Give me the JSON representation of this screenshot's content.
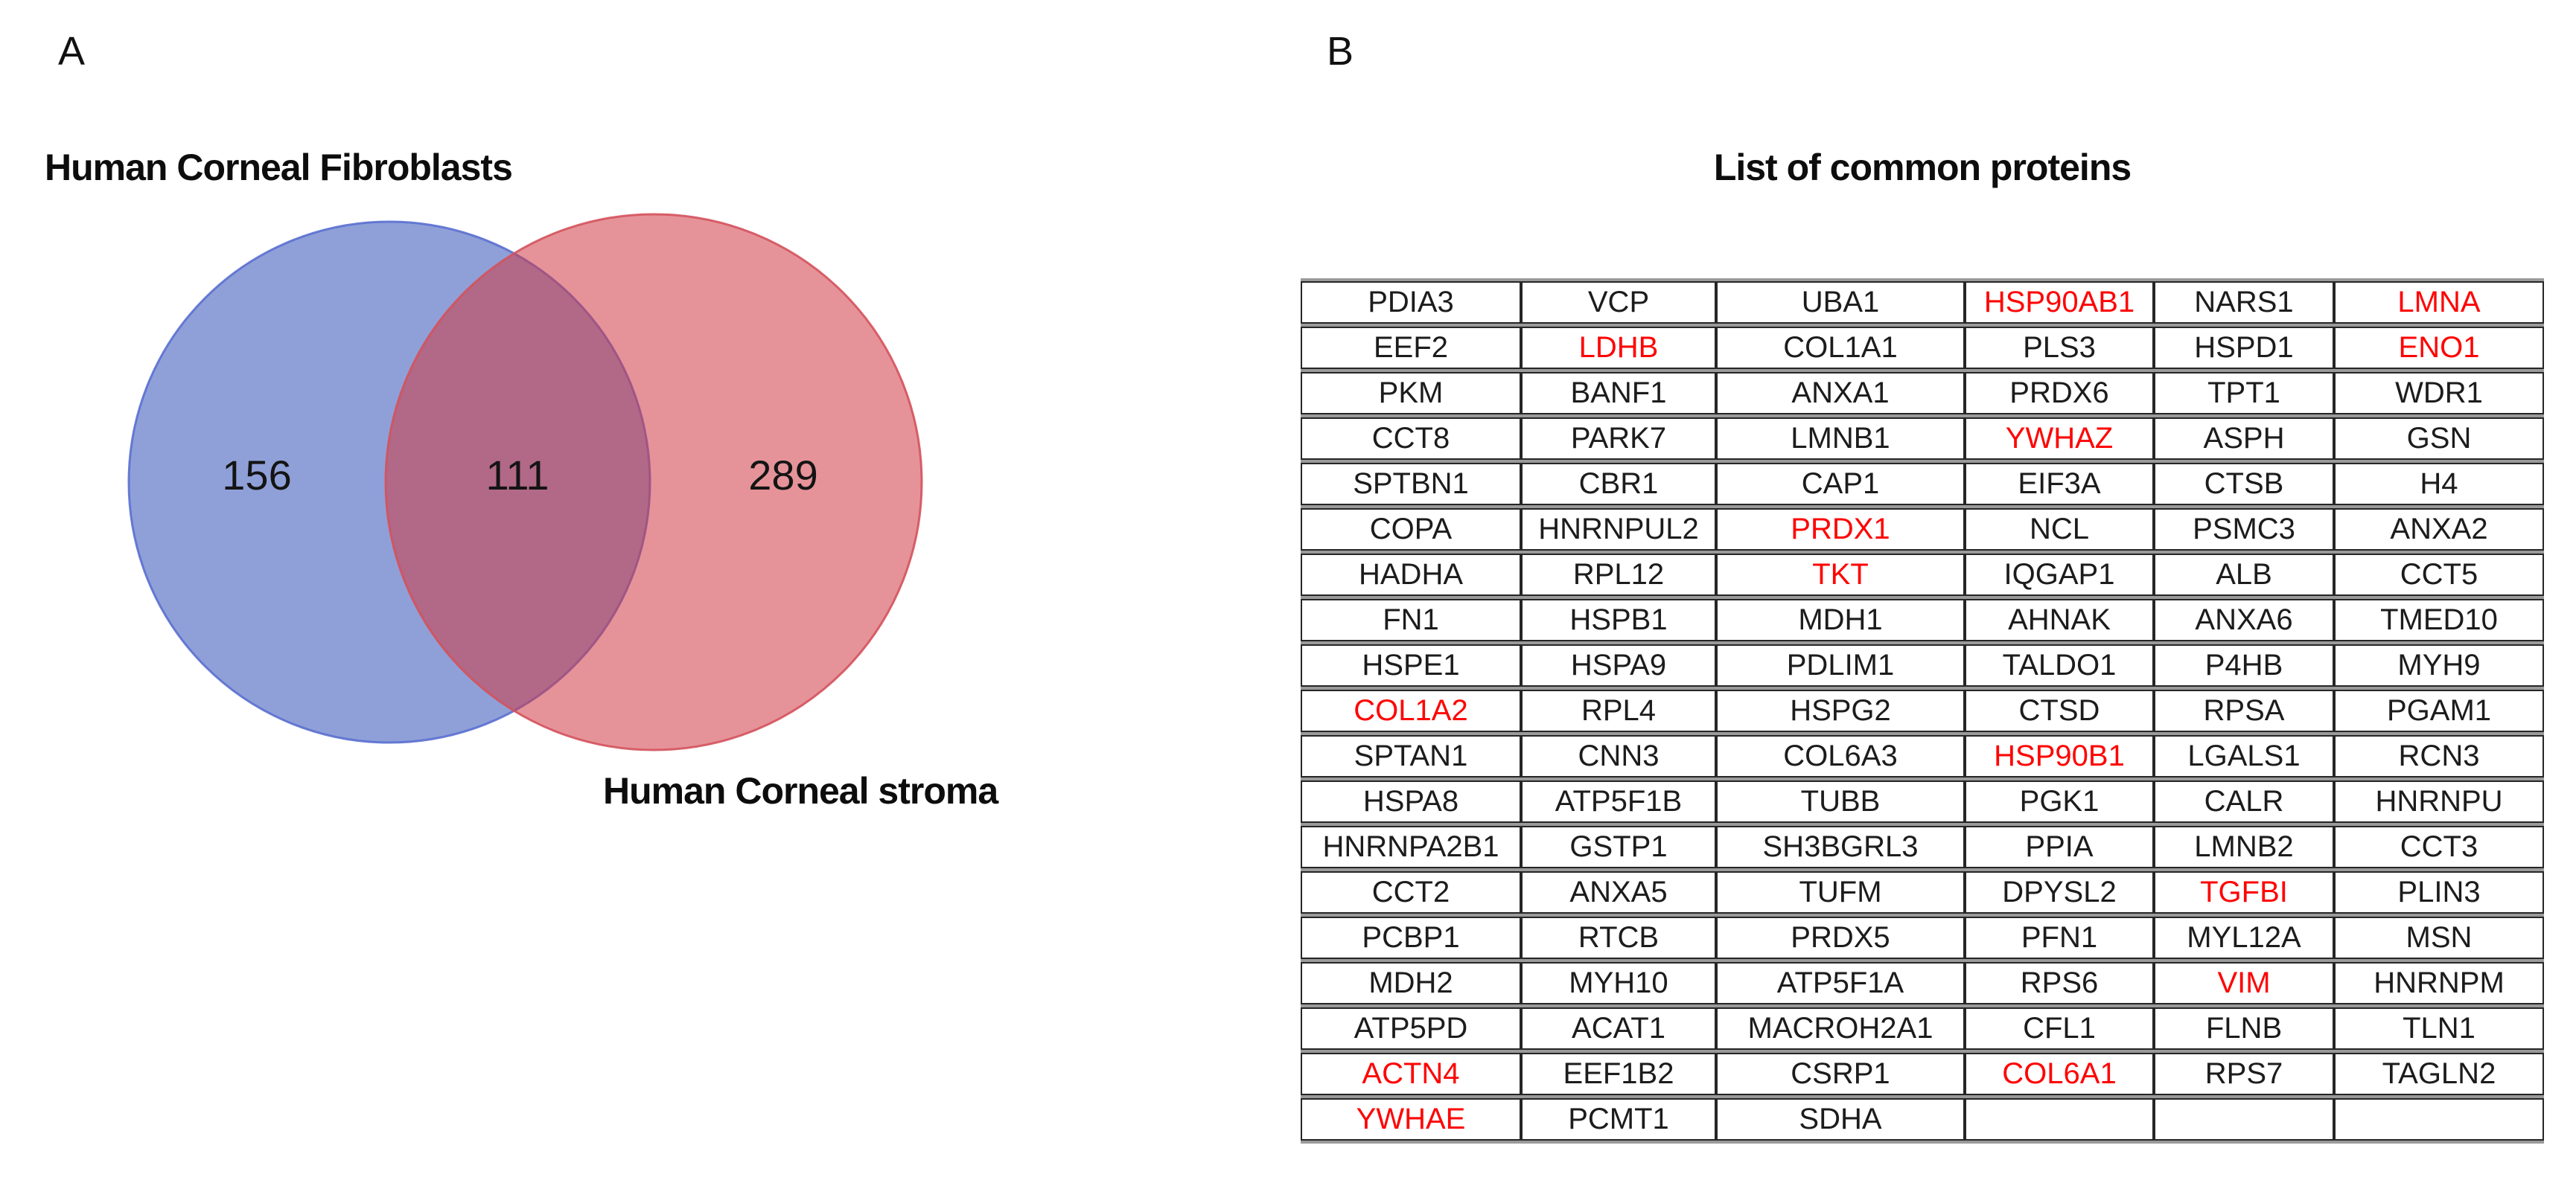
{
  "figure": {
    "panel_a": {
      "label": "A",
      "venn": {
        "set1_label": "Human Corneal Fibroblasts",
        "set2_label": "Human Corneal stroma",
        "set1_only_count": "156",
        "intersection_count": "111",
        "set2_only_count": "289",
        "set1_fill": "#3352b8",
        "set2_fill": "#cf3a45",
        "fill_opacity": "0.55",
        "set1_stroke": "#5a6fd0",
        "set2_stroke": "#d4525c"
      }
    },
    "panel_b": {
      "label": "B",
      "title": "List of common proteins",
      "table": {
        "text_color": "#1c1c1c",
        "highlight_color": "#fe0404",
        "rows": [
          [
            {
              "t": "PDIA3",
              "red": false
            },
            {
              "t": "VCP",
              "red": false
            },
            {
              "t": "UBA1",
              "red": false
            },
            {
              "t": "HSP90AB1",
              "red": true
            },
            {
              "t": "NARS1",
              "red": false
            },
            {
              "t": "LMNA",
              "red": true
            }
          ],
          [
            {
              "t": "EEF2",
              "red": false
            },
            {
              "t": "LDHB",
              "red": true
            },
            {
              "t": "COL1A1",
              "red": false
            },
            {
              "t": "PLS3",
              "red": false
            },
            {
              "t": "HSPD1",
              "red": false
            },
            {
              "t": "ENO1",
              "red": true
            }
          ],
          [
            {
              "t": "PKM",
              "red": false
            },
            {
              "t": "BANF1",
              "red": false
            },
            {
              "t": "ANXA1",
              "red": false
            },
            {
              "t": "PRDX6",
              "red": false
            },
            {
              "t": "TPT1",
              "red": false
            },
            {
              "t": "WDR1",
              "red": false
            }
          ],
          [
            {
              "t": "CCT8",
              "red": false
            },
            {
              "t": "PARK7",
              "red": false
            },
            {
              "t": "LMNB1",
              "red": false
            },
            {
              "t": "YWHAZ",
              "red": true
            },
            {
              "t": "ASPH",
              "red": false
            },
            {
              "t": "GSN",
              "red": false
            }
          ],
          [
            {
              "t": "SPTBN1",
              "red": false
            },
            {
              "t": "CBR1",
              "red": false
            },
            {
              "t": "CAP1",
              "red": false
            },
            {
              "t": "EIF3A",
              "red": false
            },
            {
              "t": "CTSB",
              "red": false
            },
            {
              "t": "H4",
              "red": false
            }
          ],
          [
            {
              "t": "COPA",
              "red": false
            },
            {
              "t": "HNRNPUL2",
              "red": false
            },
            {
              "t": "PRDX1",
              "red": true
            },
            {
              "t": "NCL",
              "red": false
            },
            {
              "t": "PSMC3",
              "red": false
            },
            {
              "t": "ANXA2",
              "red": false
            }
          ],
          [
            {
              "t": "HADHA",
              "red": false
            },
            {
              "t": "RPL12",
              "red": false
            },
            {
              "t": "TKT",
              "red": true
            },
            {
              "t": "IQGAP1",
              "red": false
            },
            {
              "t": "ALB",
              "red": false
            },
            {
              "t": "CCT5",
              "red": false
            }
          ],
          [
            {
              "t": "FN1",
              "red": false
            },
            {
              "t": "HSPB1",
              "red": false
            },
            {
              "t": "MDH1",
              "red": false
            },
            {
              "t": "AHNAK",
              "red": false
            },
            {
              "t": "ANXA6",
              "red": false
            },
            {
              "t": "TMED10",
              "red": false
            }
          ],
          [
            {
              "t": "HSPE1",
              "red": false
            },
            {
              "t": "HSPA9",
              "red": false
            },
            {
              "t": "PDLIM1",
              "red": false
            },
            {
              "t": "TALDO1",
              "red": false
            },
            {
              "t": "P4HB",
              "red": false
            },
            {
              "t": "MYH9",
              "red": false
            }
          ],
          [
            {
              "t": "COL1A2",
              "red": true
            },
            {
              "t": "RPL4",
              "red": false
            },
            {
              "t": "HSPG2",
              "red": false
            },
            {
              "t": "CTSD",
              "red": false
            },
            {
              "t": "RPSA",
              "red": false
            },
            {
              "t": "PGAM1",
              "red": false
            }
          ],
          [
            {
              "t": "SPTAN1",
              "red": false
            },
            {
              "t": "CNN3",
              "red": false
            },
            {
              "t": "COL6A3",
              "red": false
            },
            {
              "t": "HSP90B1",
              "red": true
            },
            {
              "t": "LGALS1",
              "red": false
            },
            {
              "t": "RCN3",
              "red": false
            }
          ],
          [
            {
              "t": "HSPA8",
              "red": false
            },
            {
              "t": "ATP5F1B",
              "red": false
            },
            {
              "t": "TUBB",
              "red": false
            },
            {
              "t": "PGK1",
              "red": false
            },
            {
              "t": "CALR",
              "red": false
            },
            {
              "t": "HNRNPU",
              "red": false
            }
          ],
          [
            {
              "t": "HNRNPA2B1",
              "red": false
            },
            {
              "t": "GSTP1",
              "red": false
            },
            {
              "t": "SH3BGRL3",
              "red": false
            },
            {
              "t": "PPIA",
              "red": false
            },
            {
              "t": "LMNB2",
              "red": false
            },
            {
              "t": "CCT3",
              "red": false
            }
          ],
          [
            {
              "t": "CCT2",
              "red": false
            },
            {
              "t": "ANXA5",
              "red": false
            },
            {
              "t": "TUFM",
              "red": false
            },
            {
              "t": "DPYSL2",
              "red": false
            },
            {
              "t": "TGFBI",
              "red": true
            },
            {
              "t": "PLIN3",
              "red": false
            }
          ],
          [
            {
              "t": "PCBP1",
              "red": false
            },
            {
              "t": "RTCB",
              "red": false
            },
            {
              "t": "PRDX5",
              "red": false
            },
            {
              "t": "PFN1",
              "red": false
            },
            {
              "t": "MYL12A",
              "red": false
            },
            {
              "t": "MSN",
              "red": false
            }
          ],
          [
            {
              "t": "MDH2",
              "red": false
            },
            {
              "t": "MYH10",
              "red": false
            },
            {
              "t": "ATP5F1A",
              "red": false
            },
            {
              "t": "RPS6",
              "red": false
            },
            {
              "t": "VIM",
              "red": true
            },
            {
              "t": "HNRNPM",
              "red": false
            }
          ],
          [
            {
              "t": "ATP5PD",
              "red": false
            },
            {
              "t": "ACAT1",
              "red": false
            },
            {
              "t": "MACROH2A1",
              "red": false
            },
            {
              "t": "CFL1",
              "red": false
            },
            {
              "t": "FLNB",
              "red": false
            },
            {
              "t": "TLN1",
              "red": false
            }
          ],
          [
            {
              "t": "ACTN4",
              "red": true
            },
            {
              "t": "EEF1B2",
              "red": false
            },
            {
              "t": "CSRP1",
              "red": false
            },
            {
              "t": "COL6A1",
              "red": true
            },
            {
              "t": "RPS7",
              "red": false
            },
            {
              "t": "TAGLN2",
              "red": false
            }
          ],
          [
            {
              "t": "YWHAE",
              "red": true
            },
            {
              "t": "PCMT1",
              "red": false
            },
            {
              "t": "SDHA",
              "red": false
            },
            {
              "t": "",
              "red": false
            },
            {
              "t": "",
              "red": false
            },
            {
              "t": "",
              "red": false
            }
          ]
        ]
      }
    }
  }
}
